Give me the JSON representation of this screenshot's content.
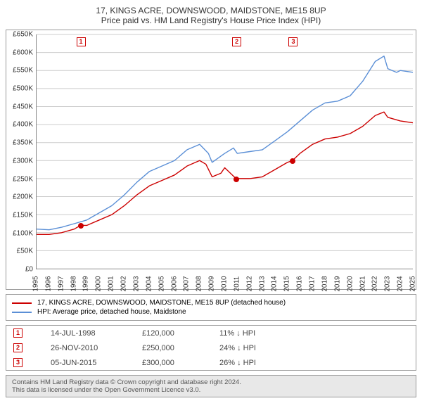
{
  "title": {
    "line1": "17, KINGS ACRE, DOWNSWOOD, MAIDSTONE, ME15 8UP",
    "line2": "Price paid vs. HM Land Registry's House Price Index (HPI)"
  },
  "chart": {
    "type": "line",
    "background_color": "#ffffff",
    "grid_color": "#cccccc",
    "axis_color": "#888888",
    "ylim": [
      0,
      650000
    ],
    "ytick_step": 50000,
    "yticks": [
      "£0",
      "£50K",
      "£100K",
      "£150K",
      "£200K",
      "£250K",
      "£300K",
      "£350K",
      "£400K",
      "£450K",
      "£500K",
      "£550K",
      "£600K",
      "£650K"
    ],
    "xlim": [
      1995,
      2025
    ],
    "xticks": [
      1995,
      1996,
      1997,
      1998,
      1999,
      2000,
      2001,
      2002,
      2003,
      2004,
      2005,
      2006,
      2007,
      2008,
      2009,
      2010,
      2011,
      2012,
      2013,
      2014,
      2015,
      2016,
      2017,
      2018,
      2019,
      2020,
      2021,
      2022,
      2023,
      2024,
      2025
    ],
    "series": [
      {
        "name": "price_paid",
        "color": "#cc0000",
        "line_width": 1.4,
        "points": [
          [
            1995,
            95000
          ],
          [
            1996,
            95000
          ],
          [
            1997,
            100000
          ],
          [
            1998,
            110000
          ],
          [
            1998.5,
            120000
          ],
          [
            1999,
            120000
          ],
          [
            2000,
            135000
          ],
          [
            2001,
            150000
          ],
          [
            2002,
            175000
          ],
          [
            2003,
            205000
          ],
          [
            2004,
            230000
          ],
          [
            2005,
            245000
          ],
          [
            2006,
            260000
          ],
          [
            2007,
            285000
          ],
          [
            2008,
            300000
          ],
          [
            2008.5,
            290000
          ],
          [
            2009,
            255000
          ],
          [
            2009.7,
            265000
          ],
          [
            2010,
            280000
          ],
          [
            2010.9,
            250000
          ],
          [
            2011,
            250000
          ],
          [
            2012,
            250000
          ],
          [
            2013,
            255000
          ],
          [
            2014,
            275000
          ],
          [
            2015,
            295000
          ],
          [
            2015.4,
            300000
          ],
          [
            2016,
            320000
          ],
          [
            2017,
            345000
          ],
          [
            2018,
            360000
          ],
          [
            2019,
            365000
          ],
          [
            2020,
            375000
          ],
          [
            2021,
            395000
          ],
          [
            2022,
            425000
          ],
          [
            2022.7,
            435000
          ],
          [
            2023,
            420000
          ],
          [
            2024,
            410000
          ],
          [
            2025,
            405000
          ]
        ]
      },
      {
        "name": "hpi",
        "color": "#5b8fd6",
        "line_width": 1.4,
        "points": [
          [
            1995,
            110000
          ],
          [
            1996,
            108000
          ],
          [
            1997,
            115000
          ],
          [
            1998,
            125000
          ],
          [
            1999,
            135000
          ],
          [
            2000,
            155000
          ],
          [
            2001,
            175000
          ],
          [
            2002,
            205000
          ],
          [
            2003,
            240000
          ],
          [
            2004,
            270000
          ],
          [
            2005,
            285000
          ],
          [
            2006,
            300000
          ],
          [
            2007,
            330000
          ],
          [
            2008,
            345000
          ],
          [
            2008.7,
            320000
          ],
          [
            2009,
            295000
          ],
          [
            2010,
            320000
          ],
          [
            2010.7,
            335000
          ],
          [
            2011,
            320000
          ],
          [
            2012,
            325000
          ],
          [
            2013,
            330000
          ],
          [
            2014,
            355000
          ],
          [
            2015,
            380000
          ],
          [
            2016,
            410000
          ],
          [
            2017,
            440000
          ],
          [
            2018,
            460000
          ],
          [
            2019,
            465000
          ],
          [
            2020,
            480000
          ],
          [
            2021,
            520000
          ],
          [
            2022,
            575000
          ],
          [
            2022.7,
            590000
          ],
          [
            2023,
            555000
          ],
          [
            2023.7,
            545000
          ],
          [
            2024,
            550000
          ],
          [
            2025,
            545000
          ]
        ]
      }
    ],
    "markers": [
      {
        "id": "1",
        "year": 1998.5,
        "price": 120000,
        "dot_color": "#cc0000"
      },
      {
        "id": "2",
        "year": 2010.9,
        "price": 250000,
        "dot_color": "#cc0000"
      },
      {
        "id": "3",
        "year": 2015.4,
        "price": 300000,
        "dot_color": "#cc0000"
      }
    ]
  },
  "legend": {
    "items": [
      {
        "color": "#cc0000",
        "label": "17, KINGS ACRE, DOWNSWOOD, MAIDSTONE, ME15 8UP (detached house)"
      },
      {
        "color": "#5b8fd6",
        "label": "HPI: Average price, detached house, Maidstone"
      }
    ]
  },
  "transactions": [
    {
      "id": "1",
      "date": "14-JUL-1998",
      "price": "£120,000",
      "diff": "11% ↓ HPI"
    },
    {
      "id": "2",
      "date": "26-NOV-2010",
      "price": "£250,000",
      "diff": "24% ↓ HPI"
    },
    {
      "id": "3",
      "date": "05-JUN-2015",
      "price": "£300,000",
      "diff": "26% ↓ HPI"
    }
  ],
  "footer": {
    "line1": "Contains HM Land Registry data © Crown copyright and database right 2024.",
    "line2": "This data is licensed under the Open Government Licence v3.0."
  }
}
